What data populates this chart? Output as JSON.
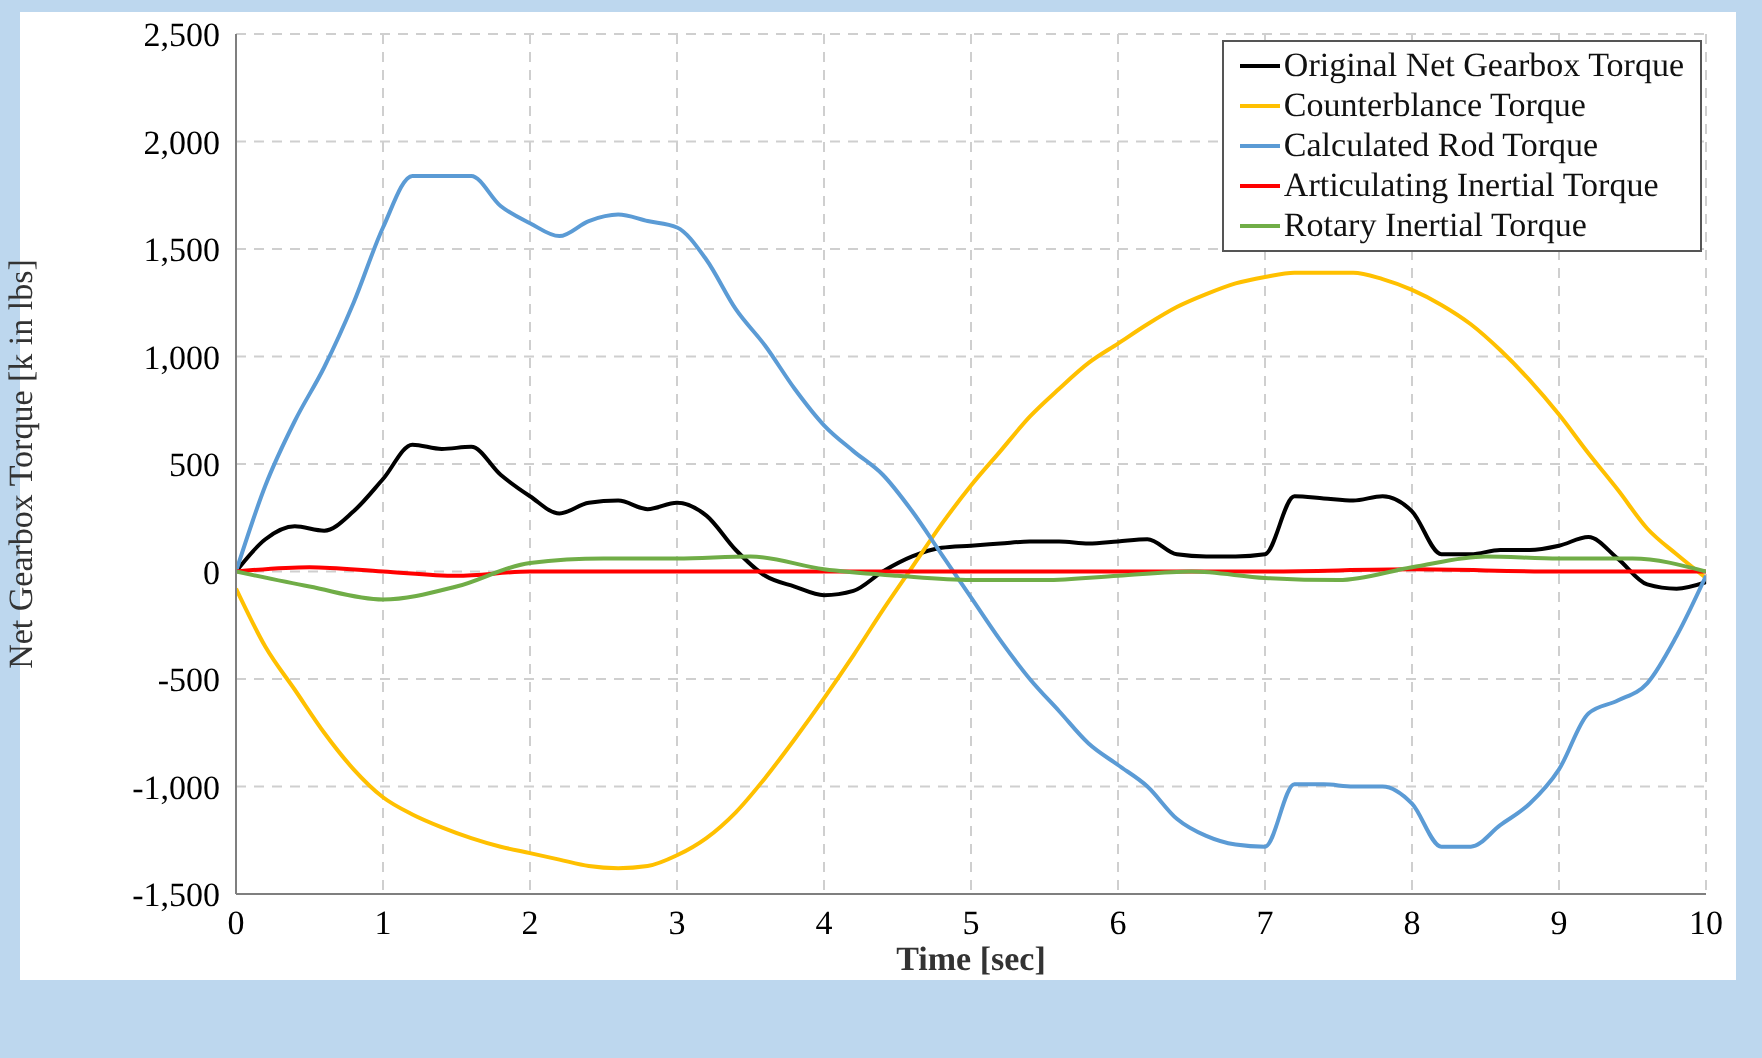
{
  "chart_data": {
    "type": "line",
    "xlabel": "Time [sec]",
    "ylabel": "Net Gearbox Torque [k in lbs]",
    "xlim": [
      0,
      10
    ],
    "xticks": [
      0,
      1,
      2,
      3,
      4,
      5,
      6,
      7,
      8,
      9,
      10
    ],
    "ylim": [
      -1500,
      2500
    ],
    "yticks": [
      {
        "value": -1500,
        "label": "-1,500"
      },
      {
        "value": -1000,
        "label": "-1,000"
      },
      {
        "value": -500,
        "label": "-500"
      },
      0,
      500,
      {
        "value": 1000,
        "label": "1,000"
      },
      {
        "value": 1500,
        "label": "1,500"
      },
      {
        "value": 2000,
        "label": "2,000"
      },
      {
        "value": 2500,
        "label": "2,500"
      }
    ],
    "grid": true,
    "legend": "top right",
    "marker": "none",
    "line_style": "solid",
    "x": [
      0,
      0.2,
      0.4,
      0.6,
      0.8,
      1,
      1.2,
      1.4,
      1.6,
      1.8,
      2,
      2.2,
      2.4,
      2.6,
      2.8,
      3,
      3.2,
      3.4,
      3.6,
      3.8,
      4,
      4.2,
      4.4,
      4.6,
      4.8,
      5,
      5.2,
      5.4,
      5.6,
      5.8,
      6,
      6.2,
      6.4,
      6.6,
      6.8,
      7,
      7.2,
      7.4,
      7.6,
      7.8,
      8,
      8.2,
      8.4,
      8.6,
      8.8,
      9,
      9.2,
      9.4,
      9.6,
      9.8,
      10
    ],
    "series": [
      {
        "name": "Original Net Gearbox Torque",
        "color": "#000000",
        "values": [
          0,
          150,
          210,
          190,
          280,
          430,
          590,
          570,
          580,
          450,
          350,
          270,
          320,
          330,
          290,
          320,
          260,
          100,
          -20,
          -70,
          -110,
          -90,
          0,
          70,
          110,
          120,
          130,
          140,
          140,
          130,
          140,
          150,
          80,
          70,
          70,
          80,
          350,
          340,
          330,
          350,
          280,
          80,
          80,
          100,
          100,
          120,
          160,
          60,
          -60,
          -80,
          -50
        ]
      },
      {
        "name": "Counterblance Torque",
        "color": "#ffc000",
        "values": [
          -80,
          -350,
          -550,
          -750,
          -920,
          -1050,
          -1130,
          -1190,
          -1240,
          -1280,
          -1310,
          -1340,
          -1370,
          -1380,
          -1370,
          -1320,
          -1240,
          -1120,
          -960,
          -780,
          -590,
          -390,
          -180,
          20,
          220,
          400,
          560,
          720,
          850,
          970,
          1060,
          1150,
          1230,
          1290,
          1340,
          1370,
          1390,
          1390,
          1390,
          1360,
          1310,
          1240,
          1150,
          1030,
          890,
          730,
          550,
          380,
          200,
          80,
          -30
        ]
      },
      {
        "name": "Calculated Rod Torque",
        "color": "#5b9bd5",
        "values": [
          0,
          400,
          700,
          950,
          1250,
          1600,
          1840,
          1840,
          1840,
          1700,
          1620,
          1560,
          1630,
          1660,
          1630,
          1600,
          1450,
          1220,
          1050,
          850,
          680,
          560,
          450,
          280,
          80,
          -120,
          -320,
          -500,
          -650,
          -800,
          -900,
          -1000,
          -1150,
          -1230,
          -1270,
          -1280,
          -990,
          -990,
          -1000,
          -1000,
          -1080,
          -1280,
          -1280,
          -1180,
          -1080,
          -920,
          -660,
          -600,
          -520,
          -300,
          -20
        ]
      },
      {
        "name": "Articulating Inertial Torque",
        "color": "#ff0000",
        "x": [
          0,
          0.5,
          1,
          1.5,
          2,
          3,
          4,
          5,
          6,
          7,
          8,
          9,
          10
        ],
        "values": [
          0,
          20,
          0,
          -20,
          0,
          0,
          0,
          0,
          0,
          0,
          10,
          0,
          0
        ]
      },
      {
        "name": "Rotary Inertial Torque",
        "color": "#70ad47",
        "x": [
          0,
          0.5,
          1,
          1.5,
          2,
          2.5,
          3,
          3.5,
          4,
          4.5,
          5,
          5.5,
          6,
          6.5,
          7,
          7.5,
          8,
          8.5,
          9,
          9.5,
          10
        ],
        "values": [
          0,
          -70,
          -130,
          -70,
          40,
          60,
          60,
          70,
          10,
          -20,
          -40,
          -40,
          -20,
          0,
          -30,
          -40,
          20,
          70,
          60,
          60,
          0
        ]
      }
    ]
  }
}
